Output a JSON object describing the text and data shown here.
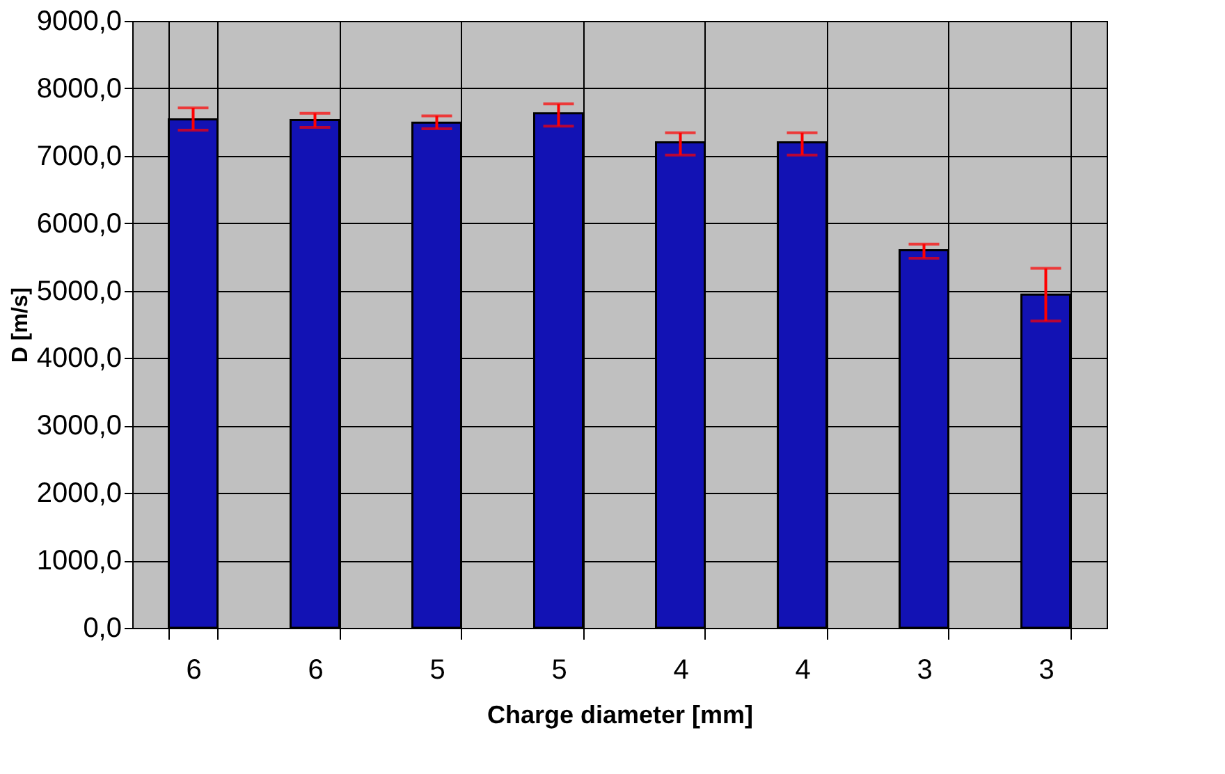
{
  "chart_data": {
    "type": "bar",
    "xlabel": "Charge diameter [mm]",
    "ylabel": "D [m/s]",
    "categories": [
      "6",
      "6",
      "5",
      "5",
      "4",
      "4",
      "3",
      "3"
    ],
    "series": [
      {
        "color": "#1212b4",
        "values": [
          7540,
          7530,
          7490,
          7630,
          7200,
          7200,
          5600,
          4940
        ],
        "errors": [
          [
            7380,
            7710
          ],
          [
            7420,
            7630
          ],
          [
            7400,
            7590
          ],
          [
            7440,
            7770
          ],
          [
            7010,
            7340
          ],
          [
            7010,
            7340
          ],
          [
            5480,
            5690
          ],
          [
            4550,
            5330
          ]
        ]
      }
    ],
    "grid": true,
    "ylim": [
      0,
      9000
    ],
    "yticks": [
      {
        "value": 0,
        "label": "0,0"
      },
      {
        "value": 1000,
        "label": "1000,0"
      },
      {
        "value": 2000,
        "label": "2000,0"
      },
      {
        "value": 3000,
        "label": "3000,0"
      },
      {
        "value": 4000,
        "label": "4000,0"
      },
      {
        "value": 5000,
        "label": "5000,0"
      },
      {
        "value": 6000,
        "label": "6000,0"
      },
      {
        "value": 7000,
        "label": "7000,0"
      },
      {
        "value": 8000,
        "label": "8000,0"
      },
      {
        "value": 9000,
        "label": "9000,0"
      }
    ]
  }
}
